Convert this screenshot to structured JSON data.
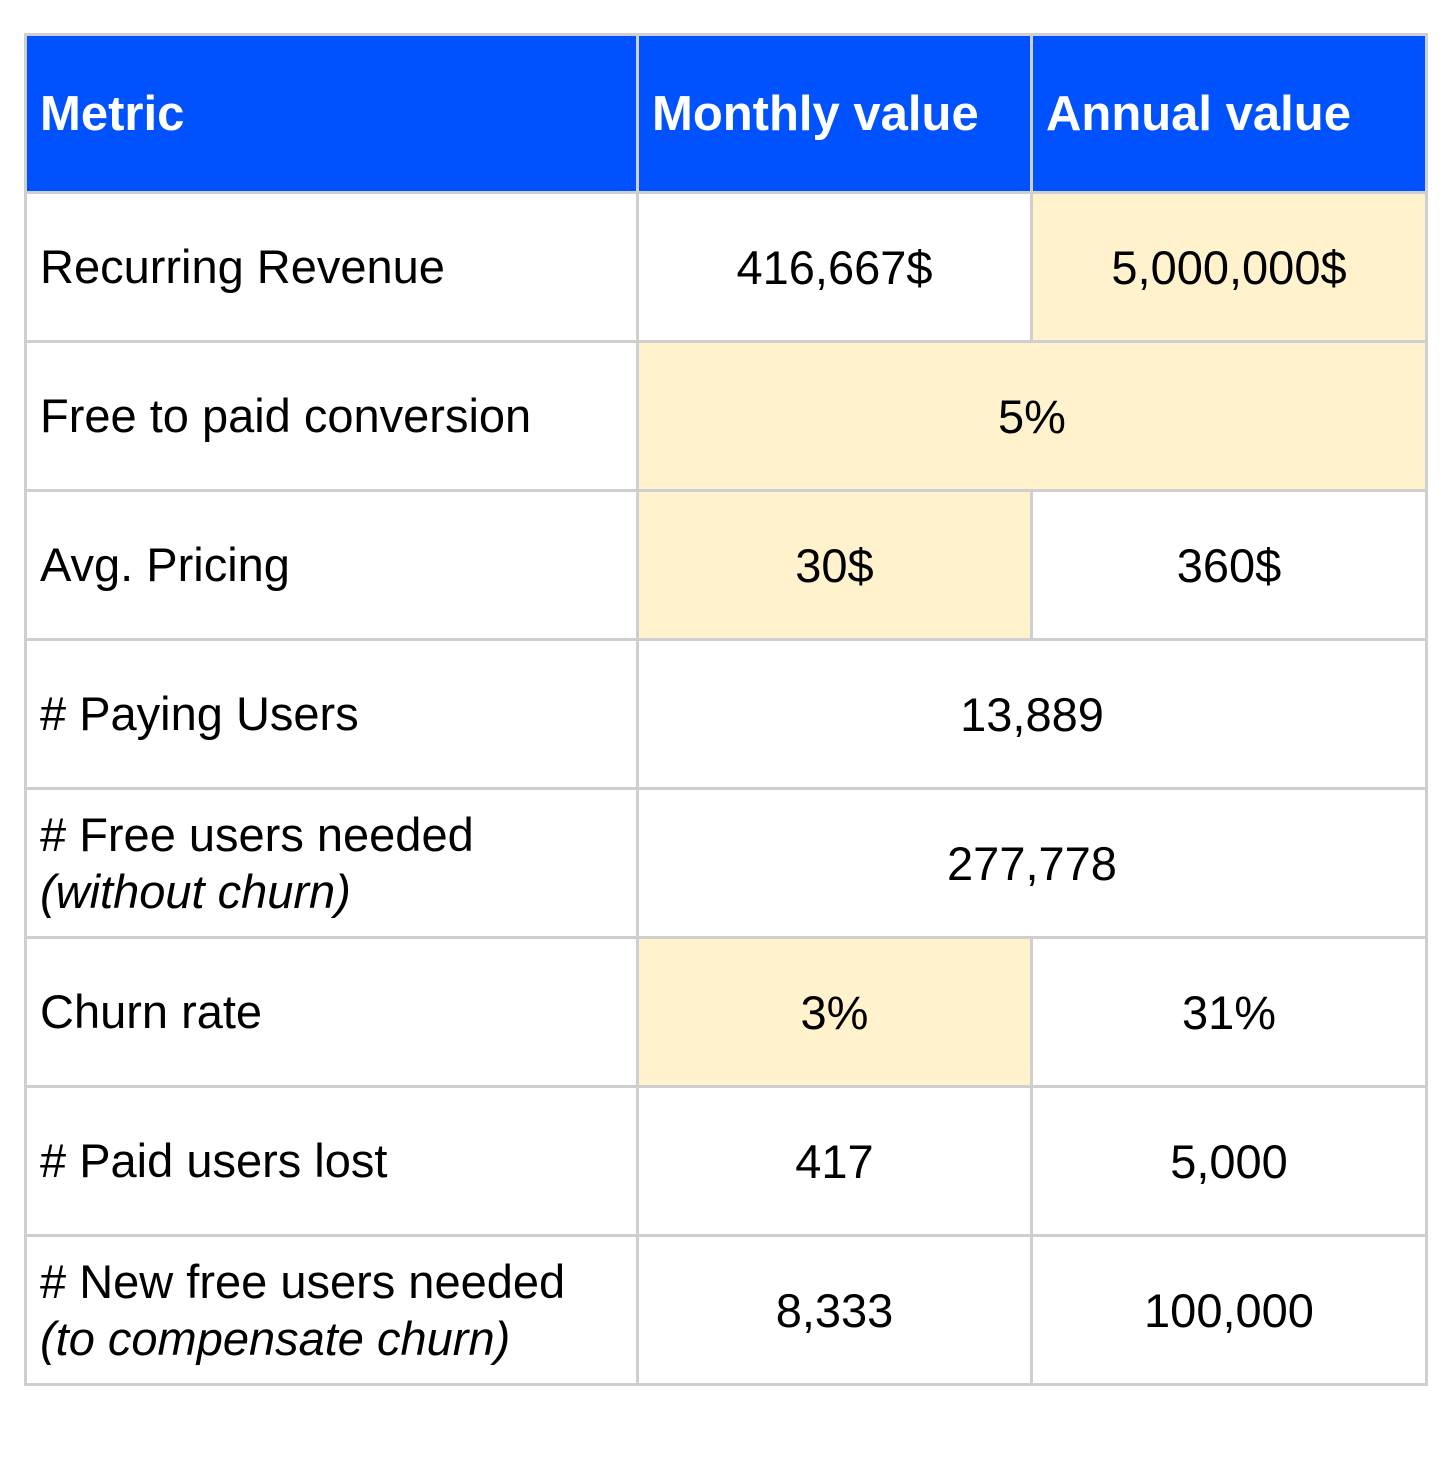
{
  "table": {
    "headers": [
      "Metric",
      "Monthly value",
      "Annual value"
    ],
    "rows": [
      {
        "metric": "Recurring Revenue",
        "monthly": "416,667$",
        "annual": "5,000,000$"
      },
      {
        "metric": "Free to paid conversion",
        "combined": "5%"
      },
      {
        "metric": "Avg. Pricing",
        "monthly": "30$",
        "annual": "360$"
      },
      {
        "metric": "# Paying Users",
        "combined": "13,889"
      },
      {
        "metric": "# Free users needed",
        "metric_note": "(without churn)",
        "combined": "277,778"
      },
      {
        "metric": "Churn rate",
        "monthly": "3%",
        "annual": "31%"
      },
      {
        "metric": "# Paid users lost",
        "monthly": "417",
        "annual": "5,000"
      },
      {
        "metric": "# New free users needed",
        "metric_note": "(to compensate churn)",
        "monthly": "8,333",
        "annual": "100,000"
      }
    ]
  },
  "colors": {
    "header_bg": "#0052ff",
    "header_text": "#ffffff",
    "highlight_bg": "#fff2cc",
    "border": "#cfcfcf"
  }
}
